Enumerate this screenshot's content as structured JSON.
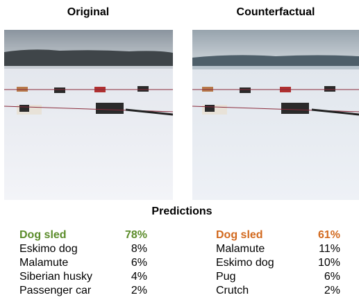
{
  "original": {
    "title": "Original"
  },
  "counterfactual": {
    "title": "Counterfactual"
  },
  "predictions": {
    "title": "Predictions",
    "original": [
      {
        "label": "Dog sled",
        "score": "78%"
      },
      {
        "label": "Eskimo dog",
        "score": "8%"
      },
      {
        "label": "Malamute",
        "score": "6%"
      },
      {
        "label": "Siberian husky",
        "score": "4%"
      },
      {
        "label": "Passenger car",
        "score": "2%"
      }
    ],
    "counterfactual": [
      {
        "label": "Dog sled",
        "score": "61%"
      },
      {
        "label": "Malamute",
        "score": "11%"
      },
      {
        "label": "Eskimo dog",
        "score": "10%"
      },
      {
        "label": "Pug",
        "score": "6%"
      },
      {
        "label": "Crutch",
        "score": "2%"
      }
    ]
  }
}
